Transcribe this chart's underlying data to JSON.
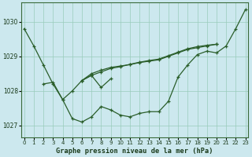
{
  "title": "Graphe pression niveau de la mer (hPa)",
  "bg_color": "#cce8ee",
  "grid_color": "#99ccbb",
  "line_color": "#2a5e2a",
  "xlim": [
    -0.3,
    23.3
  ],
  "ylim": [
    1026.65,
    1030.55
  ],
  "yticks": [
    1027,
    1028,
    1029,
    1030
  ],
  "xticks": [
    0,
    1,
    2,
    3,
    4,
    5,
    6,
    7,
    8,
    9,
    10,
    11,
    12,
    13,
    14,
    15,
    16,
    17,
    18,
    19,
    20,
    21,
    22,
    23
  ],
  "series": [
    {
      "x": [
        0,
        1,
        2,
        3,
        4,
        5,
        6,
        7,
        8,
        9,
        10,
        11,
        12,
        13,
        14,
        15,
        16,
        17,
        18,
        19,
        20,
        21,
        22,
        23
      ],
      "y": [
        1029.8,
        1029.3,
        1028.75,
        1028.2,
        1027.75,
        1027.2,
        1027.1,
        1027.25,
        1027.55,
        1027.45,
        1027.3,
        1027.25,
        1027.35,
        1027.4,
        1027.4,
        1027.7,
        1028.4,
        1028.75,
        1029.05,
        1029.15,
        1029.1,
        1029.3,
        1029.8,
        1030.35
      ]
    },
    {
      "x": [
        2,
        3,
        4,
        5,
        6,
        7,
        8,
        9
      ],
      "y": [
        1028.2,
        1028.25,
        1027.75,
        1028.0,
        1028.3,
        1028.45,
        1028.1,
        1028.35
      ]
    },
    {
      "x": [
        6,
        7,
        8,
        9,
        10,
        11,
        12,
        13,
        14,
        15,
        16,
        17,
        18,
        19,
        20
      ],
      "y": [
        1028.3,
        1028.5,
        1028.6,
        1028.68,
        1028.72,
        1028.76,
        1028.82,
        1028.86,
        1028.9,
        1029.0,
        1029.1,
        1029.2,
        1029.25,
        1029.3,
        1029.35
      ]
    },
    {
      "x": [
        6,
        7,
        8,
        9,
        10,
        11,
        12,
        13,
        14,
        15,
        16,
        17,
        18,
        19,
        20
      ],
      "y": [
        1028.3,
        1028.45,
        1028.55,
        1028.65,
        1028.7,
        1028.77,
        1028.83,
        1028.88,
        1028.92,
        1029.02,
        1029.12,
        1029.22,
        1029.28,
        1029.32,
        1029.35
      ]
    }
  ]
}
